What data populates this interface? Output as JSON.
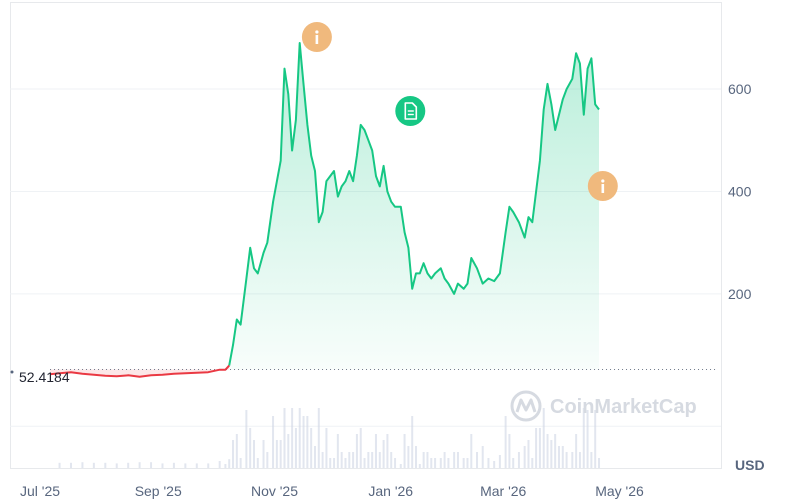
{
  "chart_data": {
    "type": "line",
    "currency": "USD",
    "baseline_value": "52.4184",
    "watermark": "CoinMarketCap",
    "ylim": [
      -140,
      770
    ],
    "y_ticks": [
      "200",
      "400",
      "600"
    ],
    "x_ticks": [
      "Jul '25",
      "Sep '25",
      "Nov '25",
      "Jan '26",
      "Mar '26",
      "May '26"
    ],
    "colors": {
      "up": "#16c784",
      "down": "#ea3943",
      "info_marker": "#f0b97d",
      "doc_marker": "#16c784"
    },
    "markers": [
      {
        "icon": "info-icon",
        "date": "2025-11-18"
      },
      {
        "icon": "document-icon",
        "date": "2026-01-06"
      },
      {
        "icon": "info-icon",
        "date": "2026-04-17"
      }
    ],
    "series": [
      {
        "values": [
          [
            "2025-07-01",
            43
          ],
          [
            "2025-07-06",
            45
          ],
          [
            "2025-07-12",
            47
          ],
          [
            "2025-07-18",
            44
          ],
          [
            "2025-07-24",
            42
          ],
          [
            "2025-07-30",
            40
          ],
          [
            "2025-08-05",
            39
          ],
          [
            "2025-08-11",
            41
          ],
          [
            "2025-08-17",
            38
          ],
          [
            "2025-08-23",
            41
          ],
          [
            "2025-08-29",
            42
          ],
          [
            "2025-09-04",
            44
          ],
          [
            "2025-09-10",
            45
          ],
          [
            "2025-09-16",
            46
          ],
          [
            "2025-09-22",
            47
          ],
          [
            "2025-09-28",
            52
          ],
          [
            "2025-10-01",
            52
          ],
          [
            "2025-10-03",
            60
          ],
          [
            "2025-10-05",
            100
          ],
          [
            "2025-10-07",
            150
          ],
          [
            "2025-10-09",
            140
          ],
          [
            "2025-10-12",
            230
          ],
          [
            "2025-10-14",
            290
          ],
          [
            "2025-10-16",
            250
          ],
          [
            "2025-10-18",
            240
          ],
          [
            "2025-10-21",
            280
          ],
          [
            "2025-10-23",
            300
          ],
          [
            "2025-10-26",
            380
          ],
          [
            "2025-10-28",
            420
          ],
          [
            "2025-10-30",
            460
          ],
          [
            "2025-11-01",
            640
          ],
          [
            "2025-11-03",
            590
          ],
          [
            "2025-11-05",
            480
          ],
          [
            "2025-11-07",
            540
          ],
          [
            "2025-11-09",
            690
          ],
          [
            "2025-11-11",
            610
          ],
          [
            "2025-11-13",
            530
          ],
          [
            "2025-11-15",
            470
          ],
          [
            "2025-11-17",
            440
          ],
          [
            "2025-11-19",
            340
          ],
          [
            "2025-11-21",
            360
          ],
          [
            "2025-11-23",
            420
          ],
          [
            "2025-11-25",
            430
          ],
          [
            "2025-11-27",
            440
          ],
          [
            "2025-11-29",
            390
          ],
          [
            "2025-12-01",
            410
          ],
          [
            "2025-12-03",
            420
          ],
          [
            "2025-12-05",
            440
          ],
          [
            "2025-12-07",
            420
          ],
          [
            "2025-12-09",
            470
          ],
          [
            "2025-12-11",
            530
          ],
          [
            "2025-12-13",
            520
          ],
          [
            "2025-12-15",
            500
          ],
          [
            "2025-12-17",
            480
          ],
          [
            "2025-12-19",
            430
          ],
          [
            "2025-12-21",
            410
          ],
          [
            "2025-12-23",
            450
          ],
          [
            "2025-12-25",
            400
          ],
          [
            "2025-12-27",
            380
          ],
          [
            "2025-12-29",
            370
          ],
          [
            "2026-01-01",
            370
          ],
          [
            "2026-01-03",
            320
          ],
          [
            "2026-01-05",
            290
          ],
          [
            "2026-01-07",
            210
          ],
          [
            "2026-01-09",
            240
          ],
          [
            "2026-01-11",
            240
          ],
          [
            "2026-01-13",
            260
          ],
          [
            "2026-01-15",
            240
          ],
          [
            "2026-01-17",
            230
          ],
          [
            "2026-01-19",
            240
          ],
          [
            "2026-01-22",
            250
          ],
          [
            "2026-01-24",
            230
          ],
          [
            "2026-01-26",
            220
          ],
          [
            "2026-01-29",
            200
          ],
          [
            "2026-01-31",
            220
          ],
          [
            "2026-02-03",
            210
          ],
          [
            "2026-02-05",
            220
          ],
          [
            "2026-02-07",
            270
          ],
          [
            "2026-02-10",
            250
          ],
          [
            "2026-02-13",
            220
          ],
          [
            "2026-02-16",
            230
          ],
          [
            "2026-02-19",
            225
          ],
          [
            "2026-02-22",
            240
          ],
          [
            "2026-02-25",
            320
          ],
          [
            "2026-02-27",
            370
          ],
          [
            "2026-03-01",
            360
          ],
          [
            "2026-03-04",
            340
          ],
          [
            "2026-03-07",
            310
          ],
          [
            "2026-03-09",
            350
          ],
          [
            "2026-03-11",
            340
          ],
          [
            "2026-03-13",
            400
          ],
          [
            "2026-03-15",
            460
          ],
          [
            "2026-03-17",
            560
          ],
          [
            "2026-03-19",
            610
          ],
          [
            "2026-03-21",
            570
          ],
          [
            "2026-03-23",
            520
          ],
          [
            "2026-03-25",
            550
          ],
          [
            "2026-03-27",
            580
          ],
          [
            "2026-03-29",
            600
          ],
          [
            "2026-04-01",
            620
          ],
          [
            "2026-04-03",
            670
          ],
          [
            "2026-04-05",
            650
          ],
          [
            "2026-04-07",
            550
          ],
          [
            "2026-04-09",
            640
          ],
          [
            "2026-04-11",
            660
          ],
          [
            "2026-04-13",
            570
          ],
          [
            "2026-04-15",
            560
          ]
        ]
      }
    ]
  }
}
